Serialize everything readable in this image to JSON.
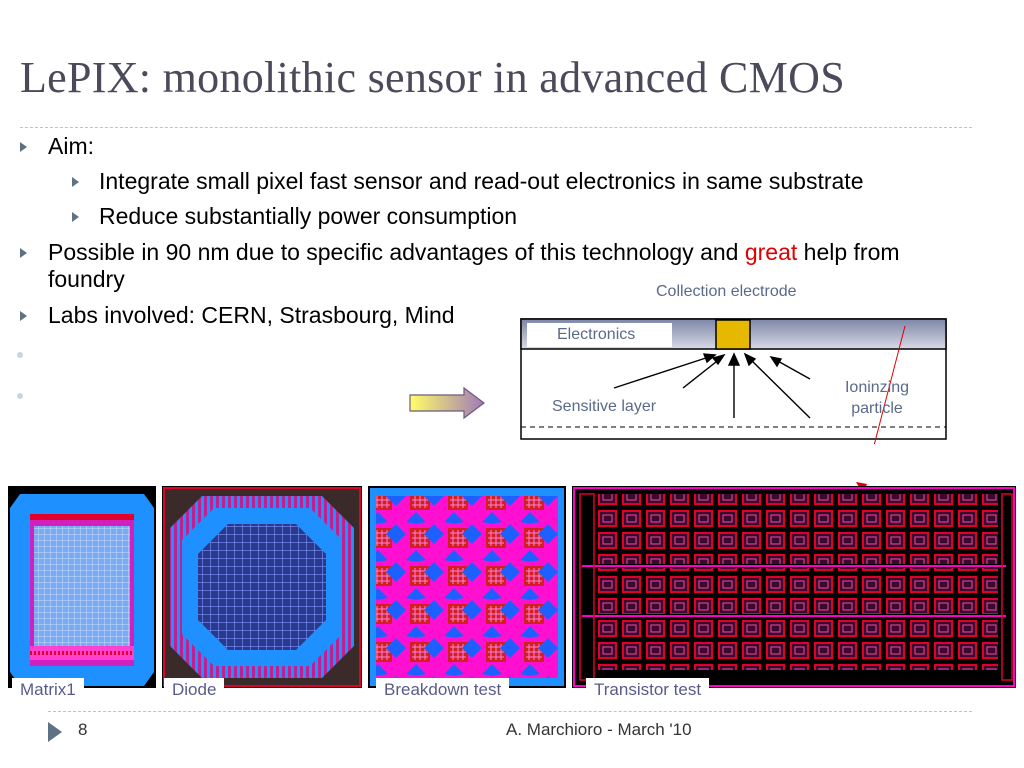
{
  "slide": {
    "title": "LePIX: monolithic sensor in advanced CMOS",
    "bullets": {
      "aim": "Aim:",
      "sub1": "Integrate small pixel fast sensor and read-out electronics in same substrate",
      "sub2": "Reduce substantially power consumption",
      "possible_pre": "Possible in 90 nm due to specific advantages of this technology and ",
      "possible_red": "great",
      "possible_post": " help from",
      "possible_line2": "foundry",
      "labs": "Labs involved: CERN, Strasbourg, Mind"
    },
    "diagram": {
      "collection_electrode": "Collection electrode",
      "electronics": "Electronics",
      "sensitive_layer": "Sensitive layer",
      "ionizing_line1": "Ioninzing",
      "ionizing_line2": "particle"
    },
    "chips": {
      "matrix1": "Matrix1",
      "diode": "Diode",
      "breakdown": "Breakdown test",
      "transistor": "Transistor test"
    },
    "footer": {
      "page_number": "8",
      "author": "A. Marchioro - March '10"
    },
    "colors": {
      "title": "#4a4a5a",
      "highlight": "#e00000",
      "chip_blue": "#1e90ff",
      "chip_magenta": "#ff00cc",
      "chip_red": "#e0002a"
    }
  }
}
